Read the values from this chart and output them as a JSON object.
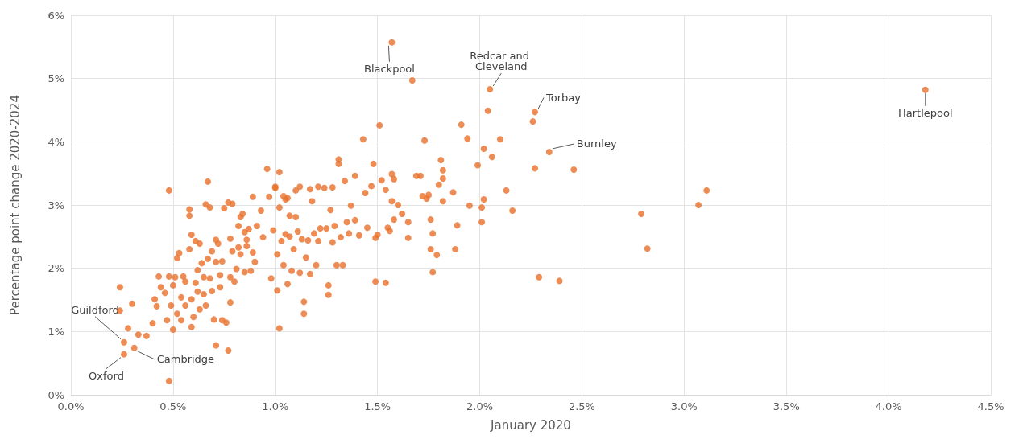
{
  "chart_data": {
    "type": "scatter",
    "xlabel": "January 2020",
    "ylabel": "Percentage point change 2020-2024",
    "xlim": [
      0,
      4.5
    ],
    "ylim": [
      0,
      6
    ],
    "xticks": [
      {
        "value": 0,
        "label": "0.0%"
      },
      {
        "value": 0.5,
        "label": "0.5%"
      },
      {
        "value": 1,
        "label": "1.0%"
      },
      {
        "value": 1.5,
        "label": "1.5%"
      },
      {
        "value": 2,
        "label": "2.0%"
      },
      {
        "value": 2.5,
        "label": "2.5%"
      },
      {
        "value": 3,
        "label": "3.0%"
      },
      {
        "value": 3.5,
        "label": "3.5%"
      },
      {
        "value": 4,
        "label": "4.0%"
      },
      {
        "value": 4.5,
        "label": "4.5%"
      }
    ],
    "yticks": [
      {
        "value": 0,
        "label": "0%"
      },
      {
        "value": 1,
        "label": "1%"
      },
      {
        "value": 2,
        "label": "2%"
      },
      {
        "value": 3,
        "label": "3%"
      },
      {
        "value": 4,
        "label": "4%"
      },
      {
        "value": 5,
        "label": "5%"
      },
      {
        "value": 6,
        "label": "6%"
      }
    ],
    "grid": true,
    "marker": "circle",
    "series": [
      {
        "color": "#e8702a",
        "x": [
          0.24,
          0.24,
          0.28,
          0.3,
          0.33,
          0.37,
          0.4,
          0.41,
          0.42,
          0.43,
          0.44,
          0.46,
          0.47,
          0.48,
          0.48,
          0.48,
          0.49,
          0.5,
          0.5,
          0.51,
          0.52,
          0.52,
          0.53,
          0.54,
          0.54,
          0.55,
          0.56,
          0.56,
          0.58,
          0.58,
          0.58,
          0.59,
          0.59,
          0.59,
          0.6,
          0.61,
          0.61,
          0.62,
          0.62,
          0.63,
          0.63,
          0.64,
          0.65,
          0.65,
          0.66,
          0.66,
          0.67,
          0.67,
          0.68,
          0.68,
          0.69,
          0.69,
          0.7,
          0.71,
          0.71,
          0.71,
          0.72,
          0.73,
          0.73,
          0.74,
          0.74,
          0.75,
          0.76,
          0.77,
          0.77,
          0.78,
          0.78,
          0.78,
          0.79,
          0.79,
          0.8,
          0.81,
          0.82,
          0.82,
          0.83,
          0.83,
          0.84,
          0.85,
          0.85,
          0.86,
          0.86,
          0.87,
          0.88,
          0.89,
          0.89,
          0.9,
          0.91,
          0.93,
          0.94,
          0.96,
          0.97,
          0.98,
          0.99,
          1.0,
          1.0,
          1.01,
          1.01,
          1.02,
          1.02,
          1.02,
          1.03,
          1.04,
          1.04,
          1.05,
          1.05,
          1.06,
          1.06,
          1.07,
          1.07,
          1.08,
          1.09,
          1.1,
          1.1,
          1.11,
          1.12,
          1.12,
          1.13,
          1.14,
          1.14,
          1.15,
          1.16,
          1.17,
          1.17,
          1.18,
          1.19,
          1.2,
          1.21,
          1.21,
          1.22,
          1.24,
          1.25,
          1.26,
          1.26,
          1.27,
          1.28,
          1.28,
          1.29,
          1.3,
          1.31,
          1.31,
          1.32,
          1.33,
          1.34,
          1.35,
          1.36,
          1.37,
          1.39,
          1.39,
          1.41,
          1.43,
          1.44,
          1.45,
          1.47,
          1.48,
          1.49,
          1.49,
          1.5,
          1.51,
          1.52,
          1.54,
          1.54,
          1.55,
          1.56,
          1.57,
          1.57,
          1.58,
          1.58,
          1.6,
          1.62,
          1.65,
          1.65,
          1.67,
          1.69,
          1.71,
          1.72,
          1.73,
          1.74,
          1.75,
          1.76,
          1.76,
          1.77,
          1.77,
          1.79,
          1.8,
          1.81,
          1.82,
          1.82,
          1.82,
          1.87,
          1.88,
          1.89,
          1.91,
          1.94,
          1.95,
          1.99,
          2.01,
          2.01,
          2.02,
          2.02,
          2.04,
          2.06,
          2.1,
          2.13,
          2.16,
          2.26,
          2.27,
          2.29,
          2.39,
          2.46,
          2.79,
          2.82,
          3.07,
          3.11,
          1.57,
          2.05,
          2.27,
          2.34,
          4.18,
          0.26,
          0.26,
          0.31
        ],
        "values": [
          1.7,
          1.33,
          1.05,
          1.44,
          0.95,
          0.93,
          1.13,
          1.51,
          1.4,
          1.87,
          1.7,
          1.61,
          1.18,
          1.87,
          3.23,
          0.22,
          1.41,
          1.73,
          1.03,
          1.86,
          1.28,
          2.16,
          2.24,
          1.54,
          1.18,
          1.87,
          1.41,
          1.79,
          2.3,
          2.93,
          2.83,
          2.53,
          1.07,
          1.51,
          1.23,
          2.43,
          1.77,
          1.97,
          1.63,
          1.35,
          2.39,
          2.08,
          1.86,
          1.59,
          3.01,
          1.41,
          2.15,
          3.37,
          2.96,
          1.84,
          2.27,
          1.64,
          1.19,
          2.45,
          0.78,
          2.1,
          2.39,
          1.7,
          1.89,
          1.18,
          2.11,
          2.95,
          1.14,
          0.7,
          3.04,
          2.47,
          1.46,
          1.86,
          3.02,
          2.27,
          1.79,
          1.99,
          2.67,
          2.33,
          2.81,
          2.22,
          2.86,
          2.57,
          1.94,
          2.45,
          2.35,
          2.62,
          1.96,
          2.25,
          3.13,
          2.1,
          2.67,
          2.91,
          2.49,
          3.57,
          3.13,
          1.84,
          2.6,
          3.27,
          3.29,
          2.22,
          1.65,
          1.05,
          3.52,
          2.96,
          2.43,
          3.14,
          2.05,
          2.54,
          3.09,
          1.75,
          3.11,
          2.83,
          2.5,
          1.96,
          2.3,
          3.23,
          2.81,
          2.58,
          1.93,
          3.29,
          2.46,
          1.47,
          1.28,
          2.17,
          2.44,
          3.25,
          1.91,
          3.06,
          2.55,
          2.05,
          3.29,
          2.43,
          2.63,
          3.27,
          2.63,
          1.58,
          1.73,
          2.92,
          2.41,
          3.28,
          2.67,
          2.05,
          3.72,
          3.65,
          2.49,
          2.05,
          3.38,
          2.73,
          2.55,
          2.99,
          3.46,
          2.76,
          2.52,
          4.04,
          3.19,
          2.64,
          3.3,
          3.65,
          1.79,
          2.48,
          2.53,
          4.26,
          3.39,
          3.24,
          1.77,
          2.64,
          2.59,
          3.49,
          3.06,
          2.77,
          3.41,
          3.0,
          2.86,
          2.48,
          2.73,
          4.97,
          3.46,
          3.46,
          3.14,
          4.02,
          3.1,
          3.16,
          2.3,
          2.77,
          2.55,
          1.94,
          2.21,
          3.32,
          3.71,
          3.42,
          3.55,
          3.06,
          3.2,
          2.3,
          2.68,
          4.27,
          4.05,
          2.99,
          3.63,
          2.73,
          2.96,
          3.89,
          3.09,
          4.49,
          3.76,
          4.04,
          3.23,
          2.91,
          4.32,
          3.58,
          1.86,
          1.8,
          3.56,
          2.86,
          2.31,
          3.0,
          3.23,
          5.57,
          4.83,
          4.47,
          3.84,
          4.82,
          0.83,
          0.64,
          0.74
        ]
      }
    ],
    "annotations": [
      {
        "text": "Blackpool",
        "x": 1.57,
        "y": 5.57
      },
      {
        "text": "Redcar and Cleveland",
        "x": 2.05,
        "y": 4.83
      },
      {
        "text": "Torbay",
        "x": 2.27,
        "y": 4.47
      },
      {
        "text": "Burnley",
        "x": 2.34,
        "y": 3.84
      },
      {
        "text": "Hartlepool",
        "x": 4.18,
        "y": 4.82
      },
      {
        "text": "Guildford",
        "x": 0.26,
        "y": 0.83
      },
      {
        "text": "Cambridge",
        "x": 0.31,
        "y": 0.74
      },
      {
        "text": "Oxford",
        "x": 0.26,
        "y": 0.64
      }
    ]
  }
}
